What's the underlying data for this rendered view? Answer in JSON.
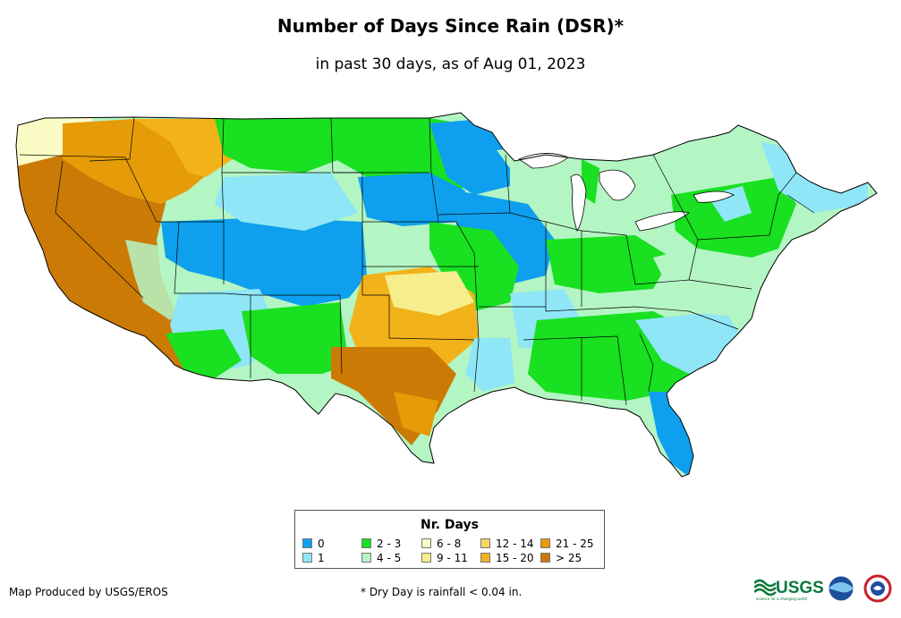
{
  "title": "Number of Days Since Rain (DSR)*",
  "subtitle": "in past 30 days, as of Aug 01, 2023",
  "legend": {
    "title": "Nr. Days",
    "items": [
      {
        "label": "0",
        "color": "#0ea0ee"
      },
      {
        "label": "1",
        "color": "#8fe6f6"
      },
      {
        "label": "2 - 3",
        "color": "#19e020"
      },
      {
        "label": "4 - 5",
        "color": "#b4f5c4"
      },
      {
        "label": "6 - 8",
        "color": "#fbfbc6"
      },
      {
        "label": "9 - 11",
        "color": "#f6ee8c"
      },
      {
        "label": "12 - 14",
        "color": "#f3d66a"
      },
      {
        "label": "15 - 20",
        "color": "#f2b21a"
      },
      {
        "label": "21 - 25",
        "color": "#e69b08"
      },
      {
        "label": "> 25",
        "color": "#cc7a06"
      }
    ]
  },
  "credit": "Map Produced by USGS/EROS",
  "footnote": "* Dry Day is rainfall < 0.04 in.",
  "logos": {
    "usgs": "USGS",
    "usgs_tagline": "science for a changing world"
  }
}
